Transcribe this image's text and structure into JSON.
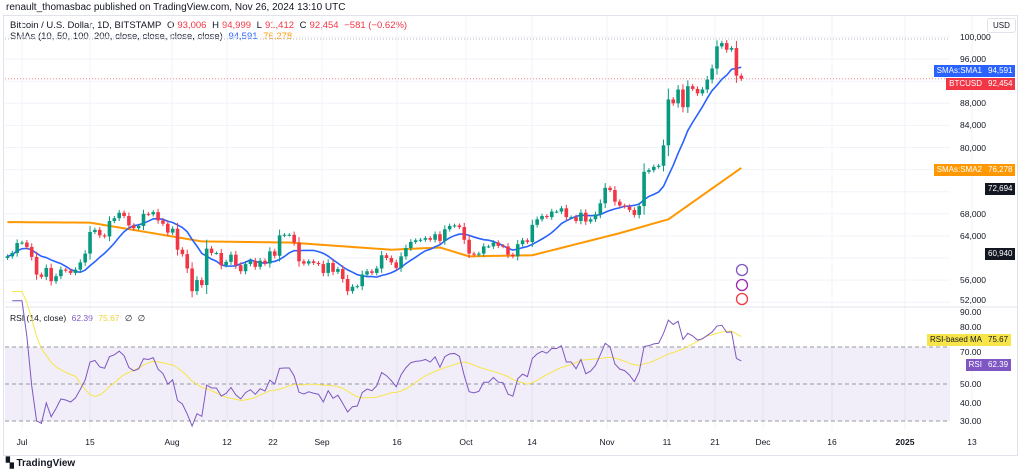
{
  "published": "renault_thomasbac published on TradingView.com, Nov 26, 2024 13:10 UTC",
  "legend": {
    "symbol": "Bitcoin / U.S. Dollar, 1D, BITSTAMP",
    "o_label": "O",
    "o": "93,006",
    "h_label": "H",
    "h": "94,999",
    "l_label": "L",
    "l": "91,412",
    "c_label": "C",
    "c": "92,454",
    "change": "−581 (−0.62%)",
    "sma_label": "SMAs (10, 50, 100, 200, close, close, close, close)",
    "sma1": "94,591",
    "sma2": "76,278",
    "rsi_label": "RSI (14, close)",
    "rsi": "62.39",
    "rsi_ma": "75.67",
    "rsi_x1": "∅",
    "rsi_x2": "∅"
  },
  "currency": "USD",
  "price_axis": [
    "100,000",
    "96,000",
    "88,000",
    "84,000",
    "80,000",
    "68,000",
    "64,000",
    "56,000",
    "52,000"
  ],
  "rsi_axis": [
    "90.00",
    "80.00",
    "70.00",
    "50.00",
    "40.00",
    "30.00"
  ],
  "tags": {
    "sma1_name": "SMAs:SMA1",
    "sma1_val": "94,591",
    "btc_name": "BTCUSD",
    "btc_val": "92,454",
    "sma2_name": "SMAs:SMA2",
    "sma2_val": "76,278",
    "cross1": "72,694",
    "cross2": "60,940",
    "rsi_ma_name": "RSI-based MA",
    "rsi_ma_val": "75.67",
    "rsi_name": "RSI",
    "rsi_val": "62.39"
  },
  "time_axis": [
    "Jul",
    "15",
    "Aug",
    "12",
    "22",
    "Sep",
    "16",
    "Oct",
    "14",
    "Nov",
    "11",
    "21",
    "Dec",
    "16",
    "2025",
    "13"
  ],
  "colors": {
    "up": "#089981",
    "down": "#f23645",
    "sma1": "#2962ff",
    "sma2": "#ff9800",
    "rsi": "#7e57c2",
    "rsi_ma": "#f7e54a"
  },
  "brand": "TradingView",
  "chart_data": {
    "type": "candlestick",
    "start_date": "2024-06-28",
    "closes": [
      60.3,
      60.9,
      62.7,
      62.8,
      62.0,
      60.2,
      57.0,
      56.6,
      58.2,
      55.8,
      56.7,
      57.9,
      57.7,
      57.3,
      57.9,
      59.2,
      60.8,
      64.7,
      65.1,
      64.1,
      63.9,
      66.7,
      67.2,
      68.2,
      67.6,
      65.9,
      65.4,
      65.8,
      68.0,
      67.9,
      68.3,
      66.8,
      66.2,
      64.6,
      65.3,
      61.5,
      60.7,
      58.1,
      54.0,
      56.0,
      55.1,
      61.7,
      60.9,
      60.9,
      58.7,
      59.3,
      60.6,
      58.7,
      57.6,
      58.9,
      59.5,
      58.4,
      59.5,
      59.0,
      61.2,
      60.4,
      64.1,
      64.2,
      64.2,
      62.8,
      59.4,
      59.0,
      59.4,
      59.1,
      58.9,
      57.3,
      59.1,
      57.5,
      58.0,
      56.2,
      54.0,
      54.8,
      54.9,
      57.0,
      57.6,
      57.3,
      58.1,
      60.5,
      60.0,
      59.2,
      58.2,
      60.3,
      61.8,
      62.9,
      63.2,
      63.3,
      63.6,
      63.3,
      64.3,
      63.1,
      65.2,
      65.8,
      65.9,
      65.6,
      63.3,
      60.8,
      60.6,
      60.8,
      62.1,
      62.1,
      62.8,
      62.2,
      62.1,
      60.6,
      60.3,
      62.5,
      63.2,
      62.9,
      66.0,
      67.0,
      67.6,
      67.4,
      68.4,
      68.4,
      69.0,
      67.4,
      67.4,
      66.7,
      68.2,
      66.6,
      67.0,
      67.9,
      69.9,
      72.7,
      72.3,
      70.2,
      69.5,
      69.3,
      68.7,
      67.8,
      69.4,
      75.6,
      75.9,
      76.5,
      76.7,
      80.4,
      88.7,
      88.0,
      90.5,
      87.3,
      91.1,
      90.6,
      89.8,
      90.5,
      92.3,
      94.3,
      98.3,
      98.9,
      97.7,
      98.0,
      93.0,
      92.454
    ],
    "units": "thousand USD",
    "sma50_samples": [
      [
        0,
        66.5
      ],
      [
        17,
        66.4
      ],
      [
        40,
        63.0
      ],
      [
        58,
        62.8
      ],
      [
        79,
        61.5
      ],
      [
        89,
        61.9
      ],
      [
        95,
        60.3
      ],
      [
        108,
        60.5
      ],
      [
        126,
        64.5
      ],
      [
        136,
        67.0
      ],
      [
        151,
        76.3
      ]
    ],
    "price_range": [
      52000,
      100000
    ],
    "rsi_range": [
      30,
      90
    ]
  }
}
